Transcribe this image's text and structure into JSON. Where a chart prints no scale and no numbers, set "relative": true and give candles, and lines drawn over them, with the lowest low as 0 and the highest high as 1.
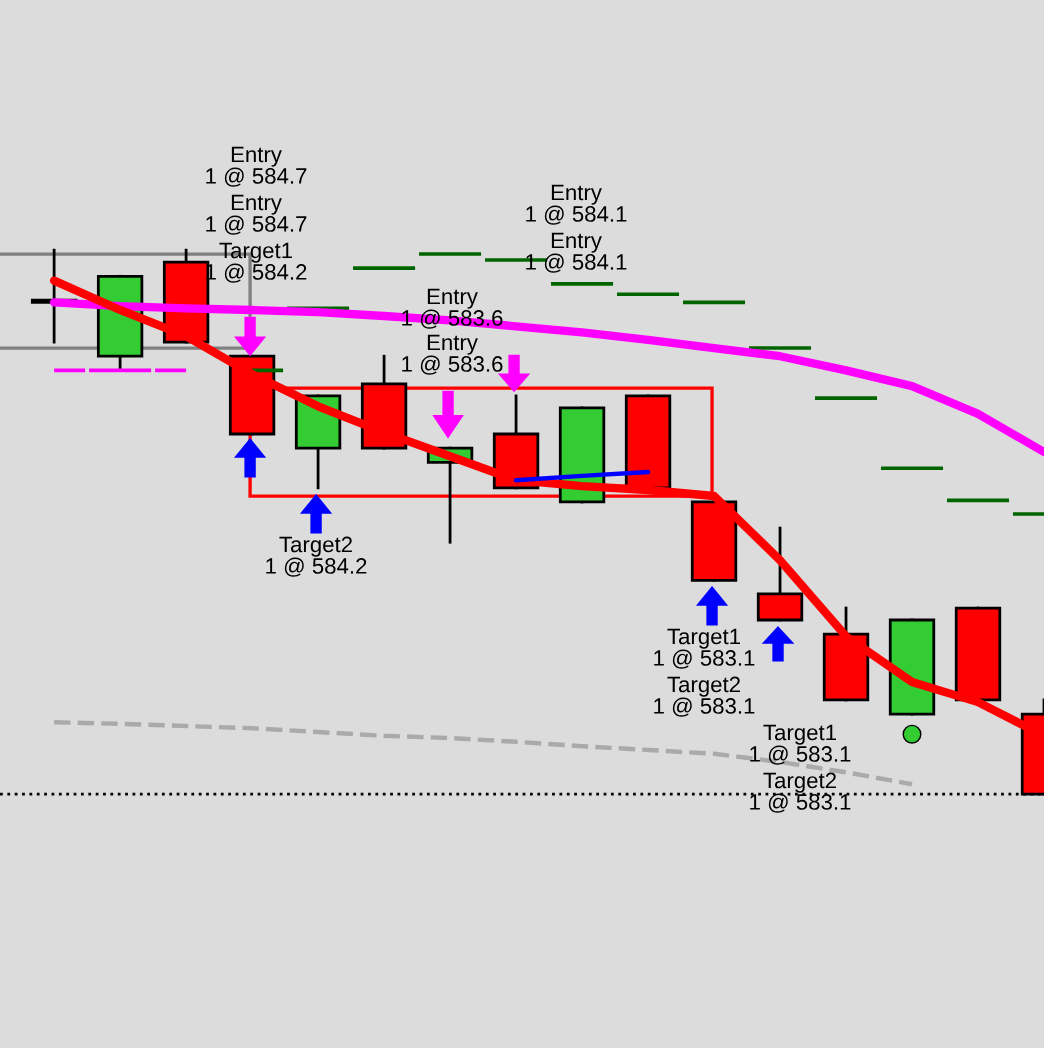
{
  "chart_data": {
    "type": "candlestick",
    "relative": true,
    "categories": [
      null,
      null,
      null,
      null,
      null,
      null,
      null,
      null,
      null,
      null,
      null,
      null,
      null,
      null,
      null,
      null
    ],
    "ohlc": [
      [
        0.904,
        1.0,
        0.831,
        0.908
      ],
      [
        0.805,
        0.952,
        0.779,
        0.952
      ],
      [
        0.978,
        1.0,
        0.831,
        0.831
      ],
      [
        0.805,
        0.805,
        0.662,
        0.662
      ],
      [
        0.636,
        0.732,
        0.563,
        0.732
      ],
      [
        0.754,
        0.805,
        0.636,
        0.636
      ],
      [
        0.61,
        0.636,
        0.463,
        0.636
      ],
      [
        0.662,
        0.732,
        0.563,
        0.563
      ],
      [
        0.537,
        0.71,
        0.537,
        0.71
      ],
      [
        0.732,
        0.732,
        0.563,
        0.563
      ],
      [
        0.537,
        0.537,
        0.393,
        0.393
      ],
      [
        0.368,
        0.489,
        0.32,
        0.32
      ],
      [
        0.294,
        0.342,
        0.173,
        0.173
      ],
      [
        0.147,
        0.32,
        0.147,
        0.32
      ],
      [
        0.342,
        0.342,
        0.173,
        0.173
      ],
      [
        0.147,
        0.173,
        0.0,
        0.0
      ]
    ],
    "colors": [
      "#000000",
      "#33cc33",
      "#ff0000",
      "#ff0000",
      "#33cc33",
      "#ff0000",
      "#33cc33",
      "#ff0000",
      "#33cc33",
      "#ff0000",
      "#ff0000",
      "#ff0000",
      "#ff0000",
      "#33cc33",
      "#ff0000",
      "#ff0000"
    ],
    "series": [
      {
        "type": "line",
        "color": "#aaaaaa",
        "line_style": "dashed",
        "values": [
          0.132,
          0.129,
          0.125,
          0.121,
          0.114,
          0.107,
          0.103,
          0.096,
          0.088,
          0.081,
          0.074,
          0.059,
          0.04,
          0.018,
          null,
          null
        ]
      },
      {
        "type": "step",
        "color": "#ff00ff",
        "line_style": "solid",
        "values": [
          0.779,
          0.779,
          0.779,
          null,
          null,
          null,
          null,
          null,
          null,
          null,
          null,
          null,
          null,
          null,
          null,
          null
        ]
      },
      {
        "type": "step",
        "color": "#006400",
        "line_style": "solid",
        "values": [
          null,
          null,
          null,
          0.779,
          0.893,
          0.967,
          0.993,
          0.982,
          0.938,
          0.919,
          0.904,
          0.82,
          0.728,
          0.599,
          0.54,
          0.515
        ]
      },
      {
        "type": "line",
        "color": "#ff00ff",
        "line_style": "solid",
        "values": [
          0.904,
          0.897,
          0.893,
          0.89,
          0.886,
          0.879,
          0.871,
          0.86,
          0.849,
          0.835,
          0.82,
          0.805,
          0.779,
          0.75,
          0.699,
          0.629
        ]
      },
      {
        "type": "line",
        "color": "#ff0000",
        "line_style": "solid",
        "values": [
          0.944,
          0.89,
          0.842,
          0.772,
          0.713,
          0.665,
          0.621,
          0.577,
          0.566,
          0.559,
          0.548,
          0.43,
          0.29,
          0.206,
          0.169,
          0.107
        ]
      },
      {
        "type": "line",
        "color": "#0000ff",
        "line_style": "solid",
        "values": [
          null,
          null,
          null,
          null,
          null,
          null,
          null,
          0.577,
          0.585,
          0.592,
          null,
          null,
          null,
          null,
          null,
          null
        ]
      },
      {
        "type": "scatter",
        "color": "#33cc33",
        "marker": "circle",
        "values": [
          null,
          null,
          null,
          null,
          null,
          null,
          null,
          null,
          null,
          null,
          null,
          null,
          null,
          0.11,
          null,
          null
        ]
      }
    ],
    "ref_lines": [
      {
        "axis": "y",
        "value": 0,
        "color": "#000000",
        "line_style": "dotted"
      }
    ],
    "annotations": [
      "Entry\n1 @ 584.7",
      "Entry\n1 @ 584.7",
      "Target1\n1 @ 584.2",
      "Target2\n1 @ 584.2",
      "Entry\n1 @ 583.6",
      "Entry\n1 @ 583.6",
      "Entry\n1 @ 584.1",
      "Entry\n1 @ 584.1",
      "Target1\n1 @ 583.1",
      "Target2\n1 @ 583.1",
      "Target1\n1 @ 583.1",
      "Target2\n1 @ 583.1"
    ]
  }
}
